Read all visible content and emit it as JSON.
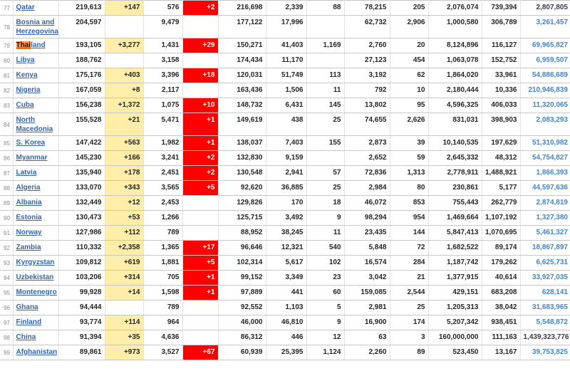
{
  "colors": {
    "new_cases_bg": "#FFEEAA",
    "new_deaths_bg": "#FF0000",
    "country_link": "#3565AD",
    "population_link": "#4286C7",
    "population_link_visited": "#3B3B4F",
    "find_highlight": "#FF9632",
    "text": "#262626",
    "rank_text": "#8A8A8A",
    "border_horizontal": "#C6C6C6",
    "border_vertical": "#E2E2E2"
  },
  "find_highlight": {
    "row_rank": "79",
    "match_text": "Thai"
  },
  "table": {
    "rows": [
      {
        "rank": "77",
        "country": "Qatar",
        "total_cases": "219,613",
        "new_cases": "+147",
        "total_deaths": "576",
        "new_deaths": "+2",
        "total_recovered": "216,698",
        "active_cases": "2,339",
        "serious_critical": "88",
        "cases_per_1m": "78,215",
        "deaths_per_1m": "205",
        "total_tests": "2,076,074",
        "tests_per_1m": "739,394",
        "population": "2,807,805",
        "population_visited": true
      },
      {
        "rank": "78",
        "country": "Bosnia and Herzegovina",
        "total_cases": "204,597",
        "new_cases": "",
        "total_deaths": "9,479",
        "new_deaths": "",
        "total_recovered": "177,122",
        "active_cases": "17,996",
        "serious_critical": "",
        "cases_per_1m": "62,732",
        "deaths_per_1m": "2,906",
        "total_tests": "1,000,580",
        "tests_per_1m": "306,789",
        "population": "3,261,457"
      },
      {
        "rank": "79",
        "country": "Thailand",
        "total_cases": "193,105",
        "new_cases": "+3,277",
        "total_deaths": "1,431",
        "new_deaths": "+29",
        "total_recovered": "150,271",
        "active_cases": "41,403",
        "serious_critical": "1,169",
        "cases_per_1m": "2,760",
        "deaths_per_1m": "20",
        "total_tests": "8,124,896",
        "tests_per_1m": "116,127",
        "population": "69,965,827"
      },
      {
        "rank": "80",
        "country": "Libya",
        "total_cases": "188,762",
        "new_cases": "",
        "total_deaths": "3,158",
        "new_deaths": "",
        "total_recovered": "174,434",
        "active_cases": "11,170",
        "serious_critical": "",
        "cases_per_1m": "27,123",
        "deaths_per_1m": "454",
        "total_tests": "1,063,078",
        "tests_per_1m": "152,752",
        "population": "6,959,507"
      },
      {
        "rank": "81",
        "country": "Kenya",
        "total_cases": "175,176",
        "new_cases": "+403",
        "total_deaths": "3,396",
        "new_deaths": "+18",
        "total_recovered": "120,031",
        "active_cases": "51,749",
        "serious_critical": "113",
        "cases_per_1m": "3,192",
        "deaths_per_1m": "62",
        "total_tests": "1,864,020",
        "tests_per_1m": "33,961",
        "population": "54,886,689"
      },
      {
        "rank": "82",
        "country": "Nigeria",
        "total_cases": "167,059",
        "new_cases": "+8",
        "total_deaths": "2,117",
        "new_deaths": "",
        "total_recovered": "163,436",
        "active_cases": "1,506",
        "serious_critical": "11",
        "cases_per_1m": "792",
        "deaths_per_1m": "10",
        "total_tests": "2,180,444",
        "tests_per_1m": "10,336",
        "population": "210,946,839"
      },
      {
        "rank": "83",
        "country": "Cuba",
        "total_cases": "156,238",
        "new_cases": "+1,372",
        "total_deaths": "1,075",
        "new_deaths": "+10",
        "total_recovered": "148,732",
        "active_cases": "6,431",
        "serious_critical": "145",
        "cases_per_1m": "13,802",
        "deaths_per_1m": "95",
        "total_tests": "4,596,325",
        "tests_per_1m": "406,033",
        "population": "11,320,065"
      },
      {
        "rank": "84",
        "country": "North Macedonia",
        "total_cases": "155,528",
        "new_cases": "+21",
        "total_deaths": "5,471",
        "new_deaths": "+1",
        "total_recovered": "149,619",
        "active_cases": "438",
        "serious_critical": "25",
        "cases_per_1m": "74,655",
        "deaths_per_1m": "2,626",
        "total_tests": "831,031",
        "tests_per_1m": "398,903",
        "population": "2,083,293"
      },
      {
        "rank": "85",
        "country": "S. Korea",
        "total_cases": "147,422",
        "new_cases": "+563",
        "total_deaths": "1,982",
        "new_deaths": "+1",
        "total_recovered": "138,037",
        "active_cases": "7,403",
        "serious_critical": "155",
        "cases_per_1m": "2,873",
        "deaths_per_1m": "39",
        "total_tests": "10,140,535",
        "tests_per_1m": "197,629",
        "population": "51,310,982"
      },
      {
        "rank": "86",
        "country": "Myanmar",
        "total_cases": "145,230",
        "new_cases": "+166",
        "total_deaths": "3,241",
        "new_deaths": "+2",
        "total_recovered": "132,830",
        "active_cases": "9,159",
        "serious_critical": "",
        "cases_per_1m": "2,652",
        "deaths_per_1m": "59",
        "total_tests": "2,645,332",
        "tests_per_1m": "48,312",
        "population": "54,754,827"
      },
      {
        "rank": "87",
        "country": "Latvia",
        "total_cases": "135,940",
        "new_cases": "+178",
        "total_deaths": "2,451",
        "new_deaths": "+2",
        "total_recovered": "130,548",
        "active_cases": "2,941",
        "serious_critical": "57",
        "cases_per_1m": "72,836",
        "deaths_per_1m": "1,313",
        "total_tests": "2,778,911",
        "tests_per_1m": "1,488,921",
        "population": "1,866,393"
      },
      {
        "rank": "88",
        "country": "Algeria",
        "total_cases": "133,070",
        "new_cases": "+343",
        "total_deaths": "3,565",
        "new_deaths": "+5",
        "total_recovered": "92,620",
        "active_cases": "36,885",
        "serious_critical": "25",
        "cases_per_1m": "2,984",
        "deaths_per_1m": "80",
        "total_tests": "230,861",
        "tests_per_1m": "5,177",
        "population": "44,597,636"
      },
      {
        "rank": "89",
        "country": "Albania",
        "total_cases": "132,449",
        "new_cases": "+12",
        "total_deaths": "2,453",
        "new_deaths": "",
        "total_recovered": "129,826",
        "active_cases": "170",
        "serious_critical": "18",
        "cases_per_1m": "46,072",
        "deaths_per_1m": "853",
        "total_tests": "755,443",
        "tests_per_1m": "262,779",
        "population": "2,874,819"
      },
      {
        "rank": "90",
        "country": "Estonia",
        "total_cases": "130,473",
        "new_cases": "+53",
        "total_deaths": "1,266",
        "new_deaths": "",
        "total_recovered": "125,715",
        "active_cases": "3,492",
        "serious_critical": "9",
        "cases_per_1m": "98,294",
        "deaths_per_1m": "954",
        "total_tests": "1,469,664",
        "tests_per_1m": "1,107,192",
        "population": "1,327,380"
      },
      {
        "rank": "91",
        "country": "Norway",
        "total_cases": "127,986",
        "new_cases": "+112",
        "total_deaths": "789",
        "new_deaths": "",
        "total_recovered": "88,952",
        "active_cases": "38,245",
        "serious_critical": "11",
        "cases_per_1m": "23,435",
        "deaths_per_1m": "144",
        "total_tests": "5,847,413",
        "tests_per_1m": "1,070,695",
        "population": "5,461,327"
      },
      {
        "rank": "92",
        "country": "Zambia",
        "total_cases": "110,332",
        "new_cases": "+2,358",
        "total_deaths": "1,365",
        "new_deaths": "+17",
        "total_recovered": "96,646",
        "active_cases": "12,321",
        "serious_critical": "540",
        "cases_per_1m": "5,848",
        "deaths_per_1m": "72",
        "total_tests": "1,682,522",
        "tests_per_1m": "89,174",
        "population": "18,867,897"
      },
      {
        "rank": "93",
        "country": "Kyrgyzstan",
        "total_cases": "109,812",
        "new_cases": "+619",
        "total_deaths": "1,881",
        "new_deaths": "+5",
        "total_recovered": "102,314",
        "active_cases": "5,617",
        "serious_critical": "102",
        "cases_per_1m": "16,574",
        "deaths_per_1m": "284",
        "total_tests": "1,187,742",
        "tests_per_1m": "179,262",
        "population": "6,625,731"
      },
      {
        "rank": "94",
        "country": "Uzbekistan",
        "total_cases": "103,206",
        "new_cases": "+314",
        "total_deaths": "705",
        "new_deaths": "+1",
        "total_recovered": "99,152",
        "active_cases": "3,349",
        "serious_critical": "23",
        "cases_per_1m": "3,042",
        "deaths_per_1m": "21",
        "total_tests": "1,377,915",
        "tests_per_1m": "40,614",
        "population": "33,927,035"
      },
      {
        "rank": "95",
        "country": "Montenegro",
        "total_cases": "99,928",
        "new_cases": "+14",
        "total_deaths": "1,598",
        "new_deaths": "+1",
        "total_recovered": "97,889",
        "active_cases": "441",
        "serious_critical": "60",
        "cases_per_1m": "159,085",
        "deaths_per_1m": "2,544",
        "total_tests": "429,151",
        "tests_per_1m": "683,208",
        "population": "628,141"
      },
      {
        "rank": "96",
        "country": "Ghana",
        "total_cases": "94,444",
        "new_cases": "",
        "total_deaths": "789",
        "new_deaths": "",
        "total_recovered": "92,552",
        "active_cases": "1,103",
        "serious_critical": "5",
        "cases_per_1m": "2,981",
        "deaths_per_1m": "25",
        "total_tests": "1,205,313",
        "tests_per_1m": "38,042",
        "population": "31,683,965"
      },
      {
        "rank": "97",
        "country": "Finland",
        "total_cases": "93,774",
        "new_cases": "+114",
        "total_deaths": "964",
        "new_deaths": "",
        "total_recovered": "46,000",
        "active_cases": "46,810",
        "serious_critical": "9",
        "cases_per_1m": "16,900",
        "deaths_per_1m": "174",
        "total_tests": "5,207,342",
        "tests_per_1m": "938,451",
        "population": "5,548,872"
      },
      {
        "rank": "98",
        "country": "China",
        "total_cases": "91,394",
        "new_cases": "+35",
        "total_deaths": "4,636",
        "new_deaths": "",
        "total_recovered": "86,312",
        "active_cases": "446",
        "serious_critical": "12",
        "cases_per_1m": "63",
        "deaths_per_1m": "3",
        "total_tests": "160,000,000",
        "tests_per_1m": "111,163",
        "population": "1,439,323,776",
        "population_visited": true
      },
      {
        "rank": "99",
        "country": "Afghanistan",
        "total_cases": "89,861",
        "new_cases": "+973",
        "total_deaths": "3,527",
        "new_deaths": "+67",
        "total_recovered": "60,939",
        "active_cases": "25,395",
        "serious_critical": "1,124",
        "cases_per_1m": "2,260",
        "deaths_per_1m": "89",
        "total_tests": "523,450",
        "tests_per_1m": "13,167",
        "population": "39,753,825"
      }
    ]
  }
}
